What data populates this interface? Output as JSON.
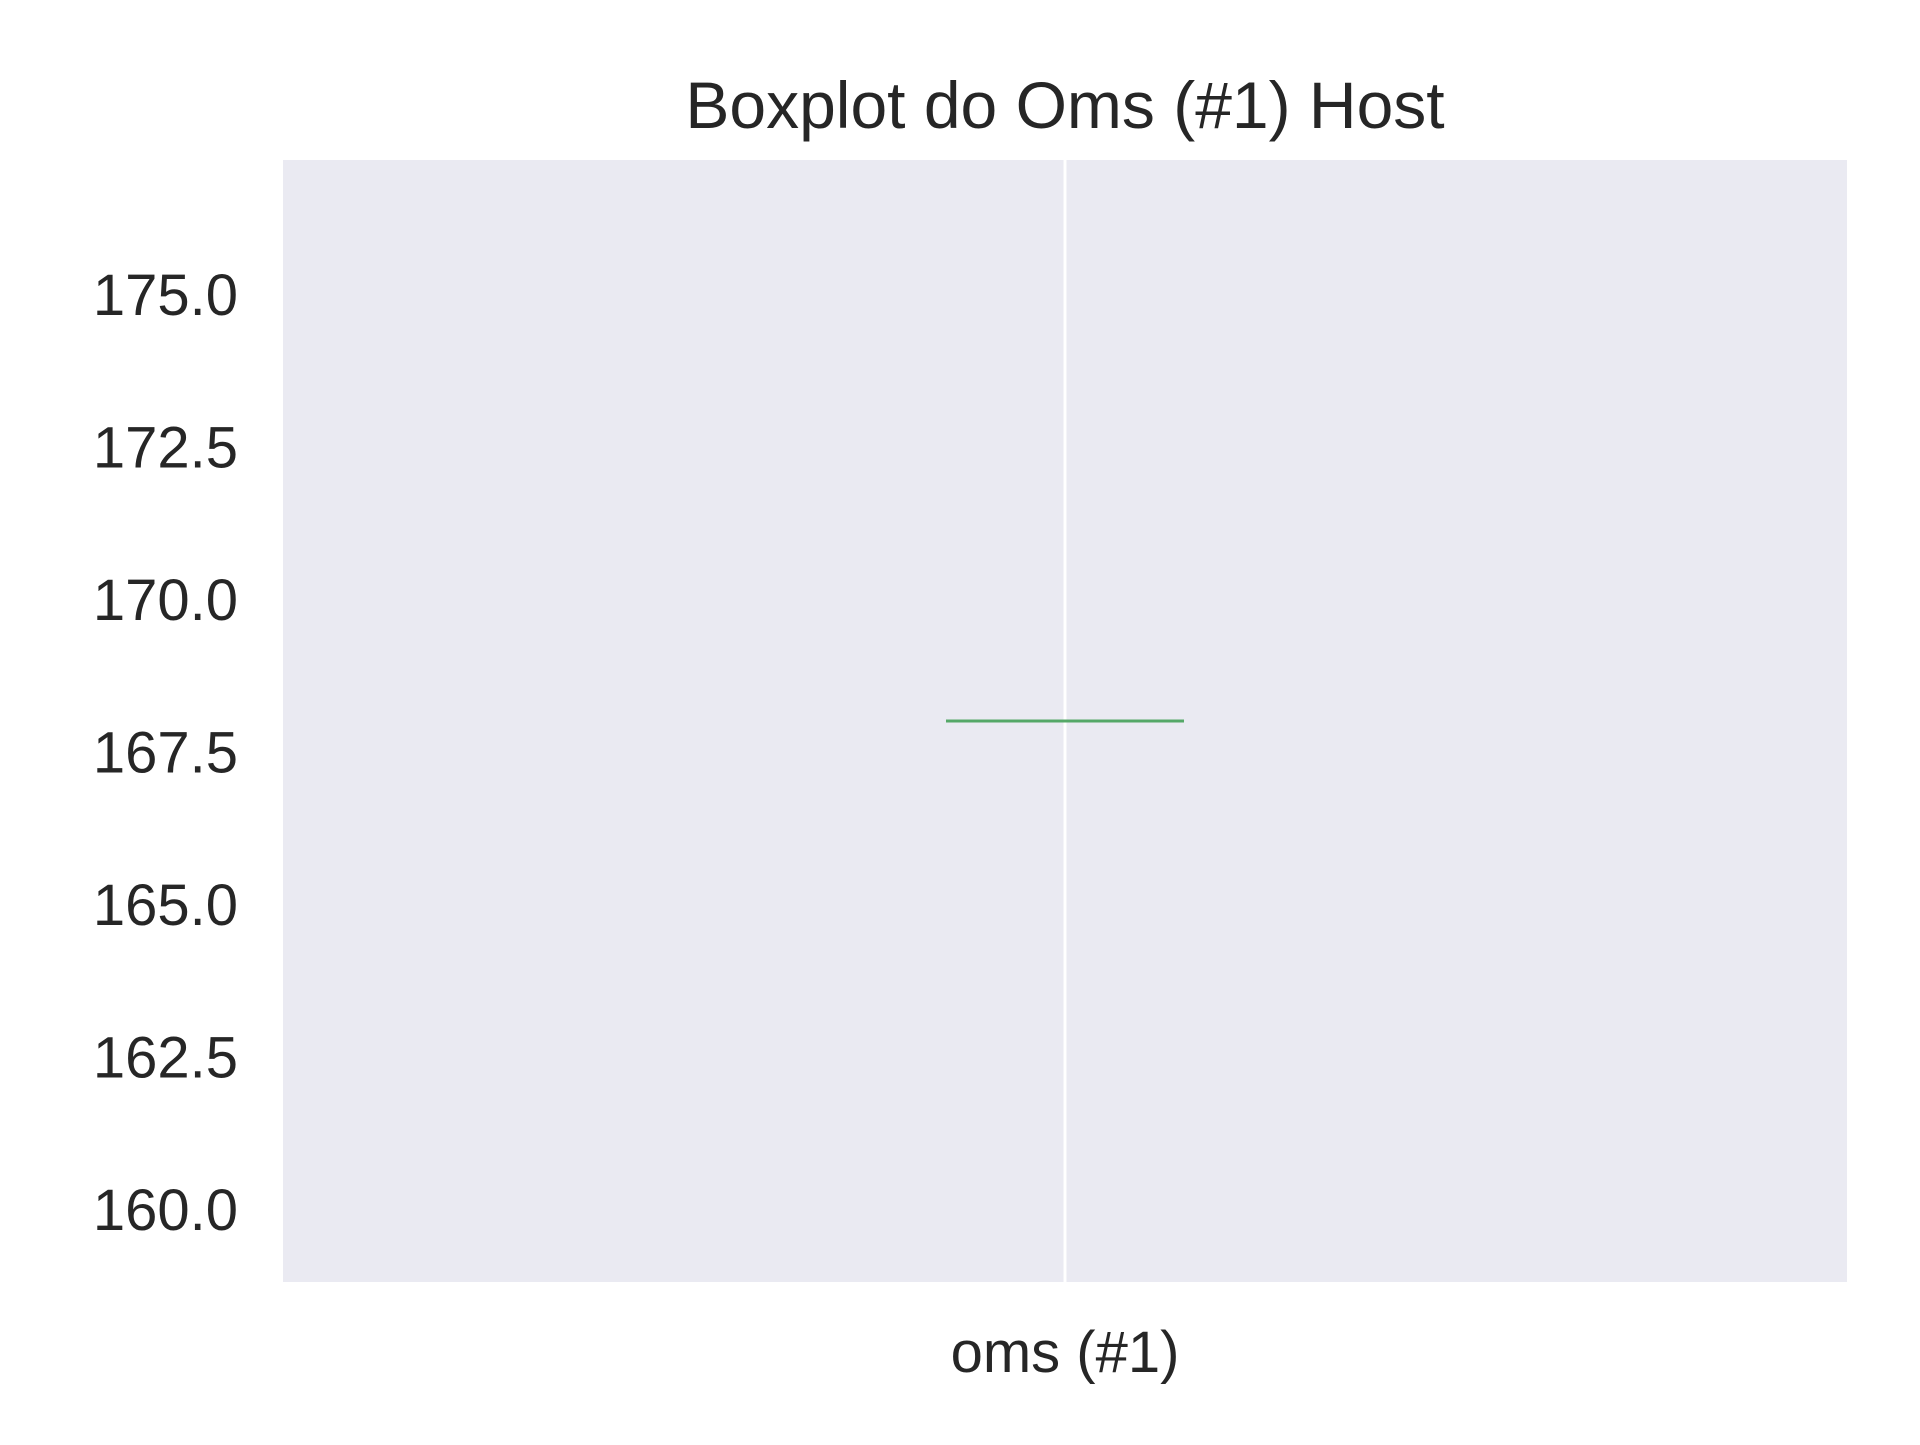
{
  "chart_data": {
    "type": "box",
    "title": "Boxplot do Oms (#1) Host",
    "xlabel": "",
    "ylabel": "",
    "categories": [
      "oms (#1)"
    ],
    "boxes": [
      {
        "category": "oms (#1)",
        "min": 168.0,
        "q1": 168.0,
        "median": 168.0,
        "q3": 168.0,
        "max": 168.0
      }
    ],
    "ylim": [
      158.8,
      177.2
    ],
    "yticks": [
      160.0,
      162.5,
      165.0,
      167.5,
      170.0,
      172.5,
      175.0
    ],
    "ytick_labels": [
      "160.0",
      "162.5",
      "165.0",
      "167.5",
      "170.0",
      "172.5",
      "175.0"
    ],
    "grid": true,
    "colors": {
      "plot_background": "#EAEAF2",
      "grid": "#FFFFFF",
      "median": "#55A868",
      "text": "#262626"
    }
  }
}
